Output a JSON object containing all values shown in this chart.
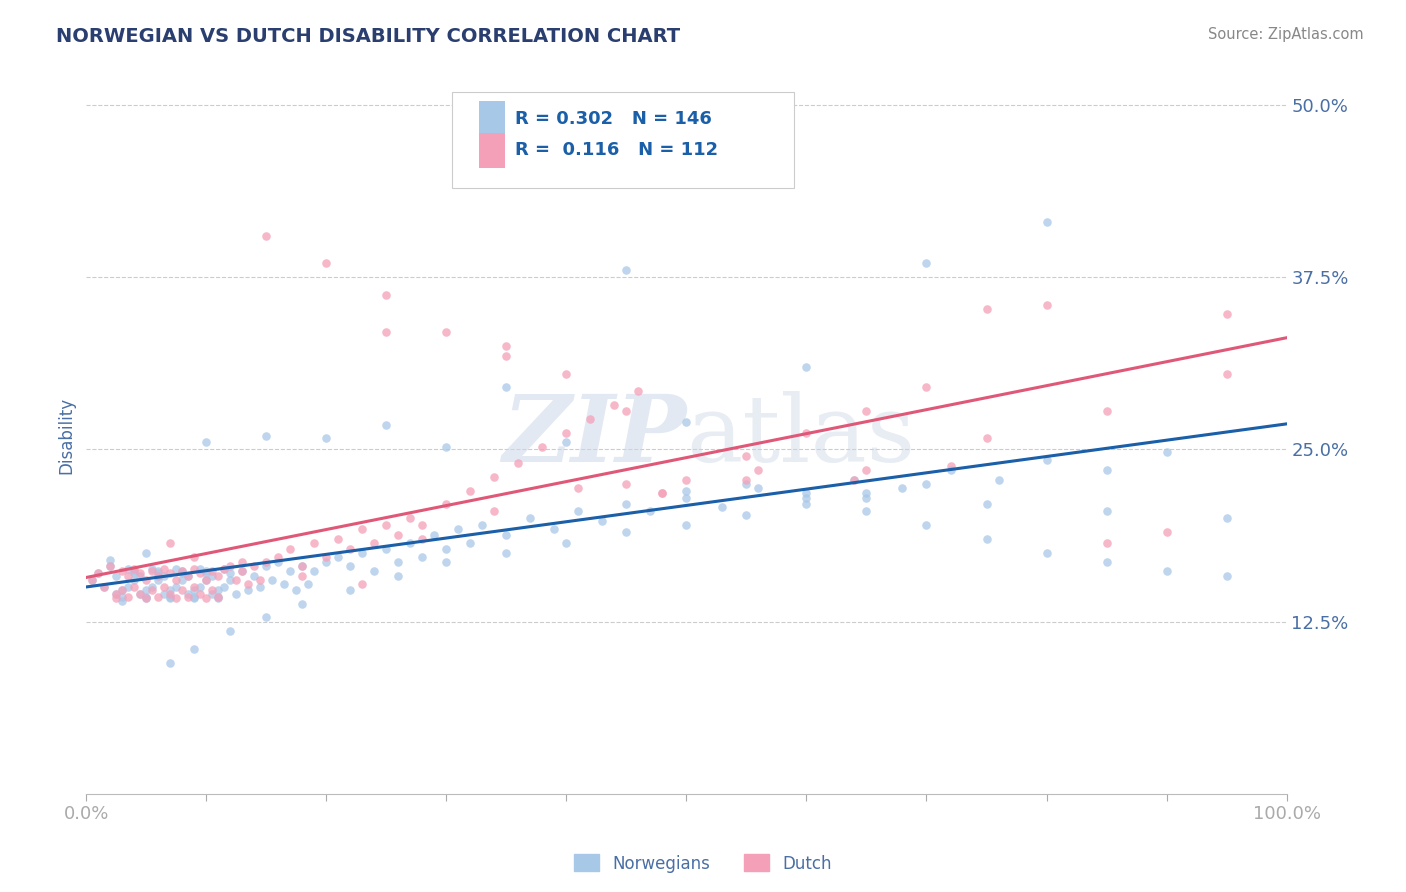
{
  "title": "NORWEGIAN VS DUTCH DISABILITY CORRELATION CHART",
  "source": "Source: ZipAtlas.com",
  "ylabel": "Disability",
  "xlim": [
    0,
    1
  ],
  "ylim": [
    0,
    0.52
  ],
  "yticks": [
    0.125,
    0.25,
    0.375,
    0.5
  ],
  "ytick_labels": [
    "12.5%",
    "25.0%",
    "37.5%",
    "50.0%"
  ],
  "xtick_labels": [
    "0.0%",
    "",
    "",
    "",
    "",
    "",
    "",
    "",
    "",
    "",
    "100.0%"
  ],
  "norwegian_color": "#a8c8e8",
  "dutch_color": "#f4a0b8",
  "norwegian_line_color": "#1a5fa8",
  "dutch_line_color": "#e05878",
  "norwegian_R": 0.302,
  "norwegian_N": 146,
  "dutch_R": 0.116,
  "dutch_N": 112,
  "watermark_zip": "ZIP",
  "watermark_atlas": "atlas",
  "background_color": "#ffffff",
  "grid_color": "#cccccc",
  "title_color": "#2a3f6f",
  "axis_color": "#4a6fa5",
  "legend_R_color": "#1a5fa8",
  "scatter_alpha": 0.75,
  "scatter_size": 38,
  "norwegian_x": [
    0.005,
    0.01,
    0.015,
    0.02,
    0.025,
    0.02,
    0.03,
    0.025,
    0.03,
    0.035,
    0.03,
    0.04,
    0.035,
    0.04,
    0.045,
    0.04,
    0.05,
    0.045,
    0.05,
    0.055,
    0.05,
    0.06,
    0.055,
    0.06,
    0.065,
    0.06,
    0.07,
    0.065,
    0.07,
    0.075,
    0.07,
    0.08,
    0.075,
    0.08,
    0.085,
    0.08,
    0.09,
    0.085,
    0.09,
    0.095,
    0.09,
    0.1,
    0.095,
    0.1,
    0.105,
    0.1,
    0.11,
    0.105,
    0.11,
    0.115,
    0.11,
    0.12,
    0.115,
    0.12,
    0.125,
    0.13,
    0.135,
    0.14,
    0.145,
    0.15,
    0.155,
    0.16,
    0.165,
    0.17,
    0.175,
    0.18,
    0.185,
    0.19,
    0.2,
    0.21,
    0.22,
    0.23,
    0.24,
    0.25,
    0.26,
    0.27,
    0.28,
    0.29,
    0.3,
    0.31,
    0.32,
    0.33,
    0.35,
    0.37,
    0.39,
    0.41,
    0.43,
    0.45,
    0.47,
    0.5,
    0.53,
    0.56,
    0.6,
    0.64,
    0.68,
    0.72,
    0.76,
    0.8,
    0.85,
    0.9,
    0.5,
    0.55,
    0.6,
    0.65,
    0.7,
    0.75,
    0.8,
    0.85,
    0.9,
    0.95,
    0.8,
    0.7,
    0.6,
    0.5,
    0.4,
    0.3,
    0.2,
    0.1,
    0.65,
    0.75,
    0.85,
    0.95,
    0.55,
    0.45,
    0.35,
    0.25,
    0.15,
    0.05,
    0.07,
    0.09,
    0.12,
    0.15,
    0.18,
    0.22,
    0.26,
    0.3,
    0.35,
    0.4,
    0.45,
    0.5,
    0.55,
    0.6,
    0.65,
    0.7
  ],
  "norwegian_y": [
    0.155,
    0.16,
    0.15,
    0.165,
    0.145,
    0.17,
    0.14,
    0.158,
    0.148,
    0.163,
    0.143,
    0.16,
    0.15,
    0.155,
    0.145,
    0.162,
    0.142,
    0.158,
    0.148,
    0.163,
    0.143,
    0.16,
    0.15,
    0.155,
    0.145,
    0.162,
    0.142,
    0.158,
    0.148,
    0.163,
    0.143,
    0.16,
    0.15,
    0.155,
    0.145,
    0.162,
    0.142,
    0.158,
    0.148,
    0.163,
    0.143,
    0.16,
    0.15,
    0.155,
    0.145,
    0.162,
    0.142,
    0.158,
    0.148,
    0.163,
    0.143,
    0.16,
    0.15,
    0.155,
    0.145,
    0.162,
    0.148,
    0.158,
    0.15,
    0.165,
    0.155,
    0.168,
    0.152,
    0.162,
    0.148,
    0.165,
    0.152,
    0.162,
    0.168,
    0.172,
    0.165,
    0.175,
    0.162,
    0.178,
    0.168,
    0.182,
    0.172,
    0.188,
    0.178,
    0.192,
    0.182,
    0.195,
    0.188,
    0.2,
    0.192,
    0.205,
    0.198,
    0.21,
    0.205,
    0.215,
    0.208,
    0.222,
    0.218,
    0.228,
    0.222,
    0.235,
    0.228,
    0.242,
    0.235,
    0.248,
    0.22,
    0.225,
    0.215,
    0.205,
    0.195,
    0.185,
    0.175,
    0.168,
    0.162,
    0.158,
    0.415,
    0.385,
    0.31,
    0.27,
    0.255,
    0.252,
    0.258,
    0.255,
    0.215,
    0.21,
    0.205,
    0.2,
    0.505,
    0.38,
    0.295,
    0.268,
    0.26,
    0.175,
    0.095,
    0.105,
    0.118,
    0.128,
    0.138,
    0.148,
    0.158,
    0.168,
    0.175,
    0.182,
    0.19,
    0.195,
    0.202,
    0.21,
    0.218,
    0.225
  ],
  "dutch_x": [
    0.005,
    0.01,
    0.015,
    0.02,
    0.025,
    0.03,
    0.025,
    0.035,
    0.03,
    0.04,
    0.035,
    0.045,
    0.04,
    0.05,
    0.045,
    0.055,
    0.05,
    0.06,
    0.055,
    0.065,
    0.06,
    0.07,
    0.065,
    0.075,
    0.07,
    0.08,
    0.075,
    0.085,
    0.08,
    0.09,
    0.085,
    0.095,
    0.09,
    0.1,
    0.095,
    0.105,
    0.1,
    0.11,
    0.105,
    0.115,
    0.11,
    0.12,
    0.125,
    0.13,
    0.135,
    0.14,
    0.145,
    0.15,
    0.16,
    0.17,
    0.18,
    0.19,
    0.2,
    0.21,
    0.22,
    0.23,
    0.24,
    0.25,
    0.26,
    0.27,
    0.28,
    0.3,
    0.32,
    0.34,
    0.36,
    0.38,
    0.4,
    0.42,
    0.44,
    0.46,
    0.48,
    0.5,
    0.55,
    0.6,
    0.65,
    0.7,
    0.75,
    0.8,
    0.85,
    0.9,
    0.95,
    0.25,
    0.35,
    0.45,
    0.2,
    0.3,
    0.4,
    0.15,
    0.25,
    0.35,
    0.45,
    0.55,
    0.65,
    0.75,
    0.85,
    0.95,
    0.07,
    0.09,
    0.13,
    0.18,
    0.23,
    0.28,
    0.34,
    0.41,
    0.48,
    0.56,
    0.64,
    0.72
  ],
  "dutch_y": [
    0.155,
    0.16,
    0.15,
    0.165,
    0.145,
    0.162,
    0.142,
    0.158,
    0.148,
    0.163,
    0.143,
    0.16,
    0.15,
    0.155,
    0.145,
    0.162,
    0.142,
    0.158,
    0.148,
    0.163,
    0.143,
    0.16,
    0.15,
    0.155,
    0.145,
    0.162,
    0.142,
    0.158,
    0.148,
    0.163,
    0.143,
    0.16,
    0.15,
    0.155,
    0.145,
    0.162,
    0.142,
    0.158,
    0.148,
    0.163,
    0.143,
    0.165,
    0.155,
    0.168,
    0.152,
    0.165,
    0.155,
    0.168,
    0.172,
    0.178,
    0.165,
    0.182,
    0.172,
    0.185,
    0.178,
    0.192,
    0.182,
    0.195,
    0.188,
    0.2,
    0.195,
    0.21,
    0.22,
    0.23,
    0.24,
    0.252,
    0.262,
    0.272,
    0.282,
    0.292,
    0.218,
    0.228,
    0.245,
    0.262,
    0.278,
    0.295,
    0.352,
    0.355,
    0.182,
    0.19,
    0.348,
    0.335,
    0.318,
    0.278,
    0.385,
    0.335,
    0.305,
    0.405,
    0.362,
    0.325,
    0.225,
    0.228,
    0.235,
    0.258,
    0.278,
    0.305,
    0.182,
    0.172,
    0.162,
    0.158,
    0.152,
    0.185,
    0.205,
    0.222,
    0.218,
    0.235,
    0.228,
    0.238
  ]
}
